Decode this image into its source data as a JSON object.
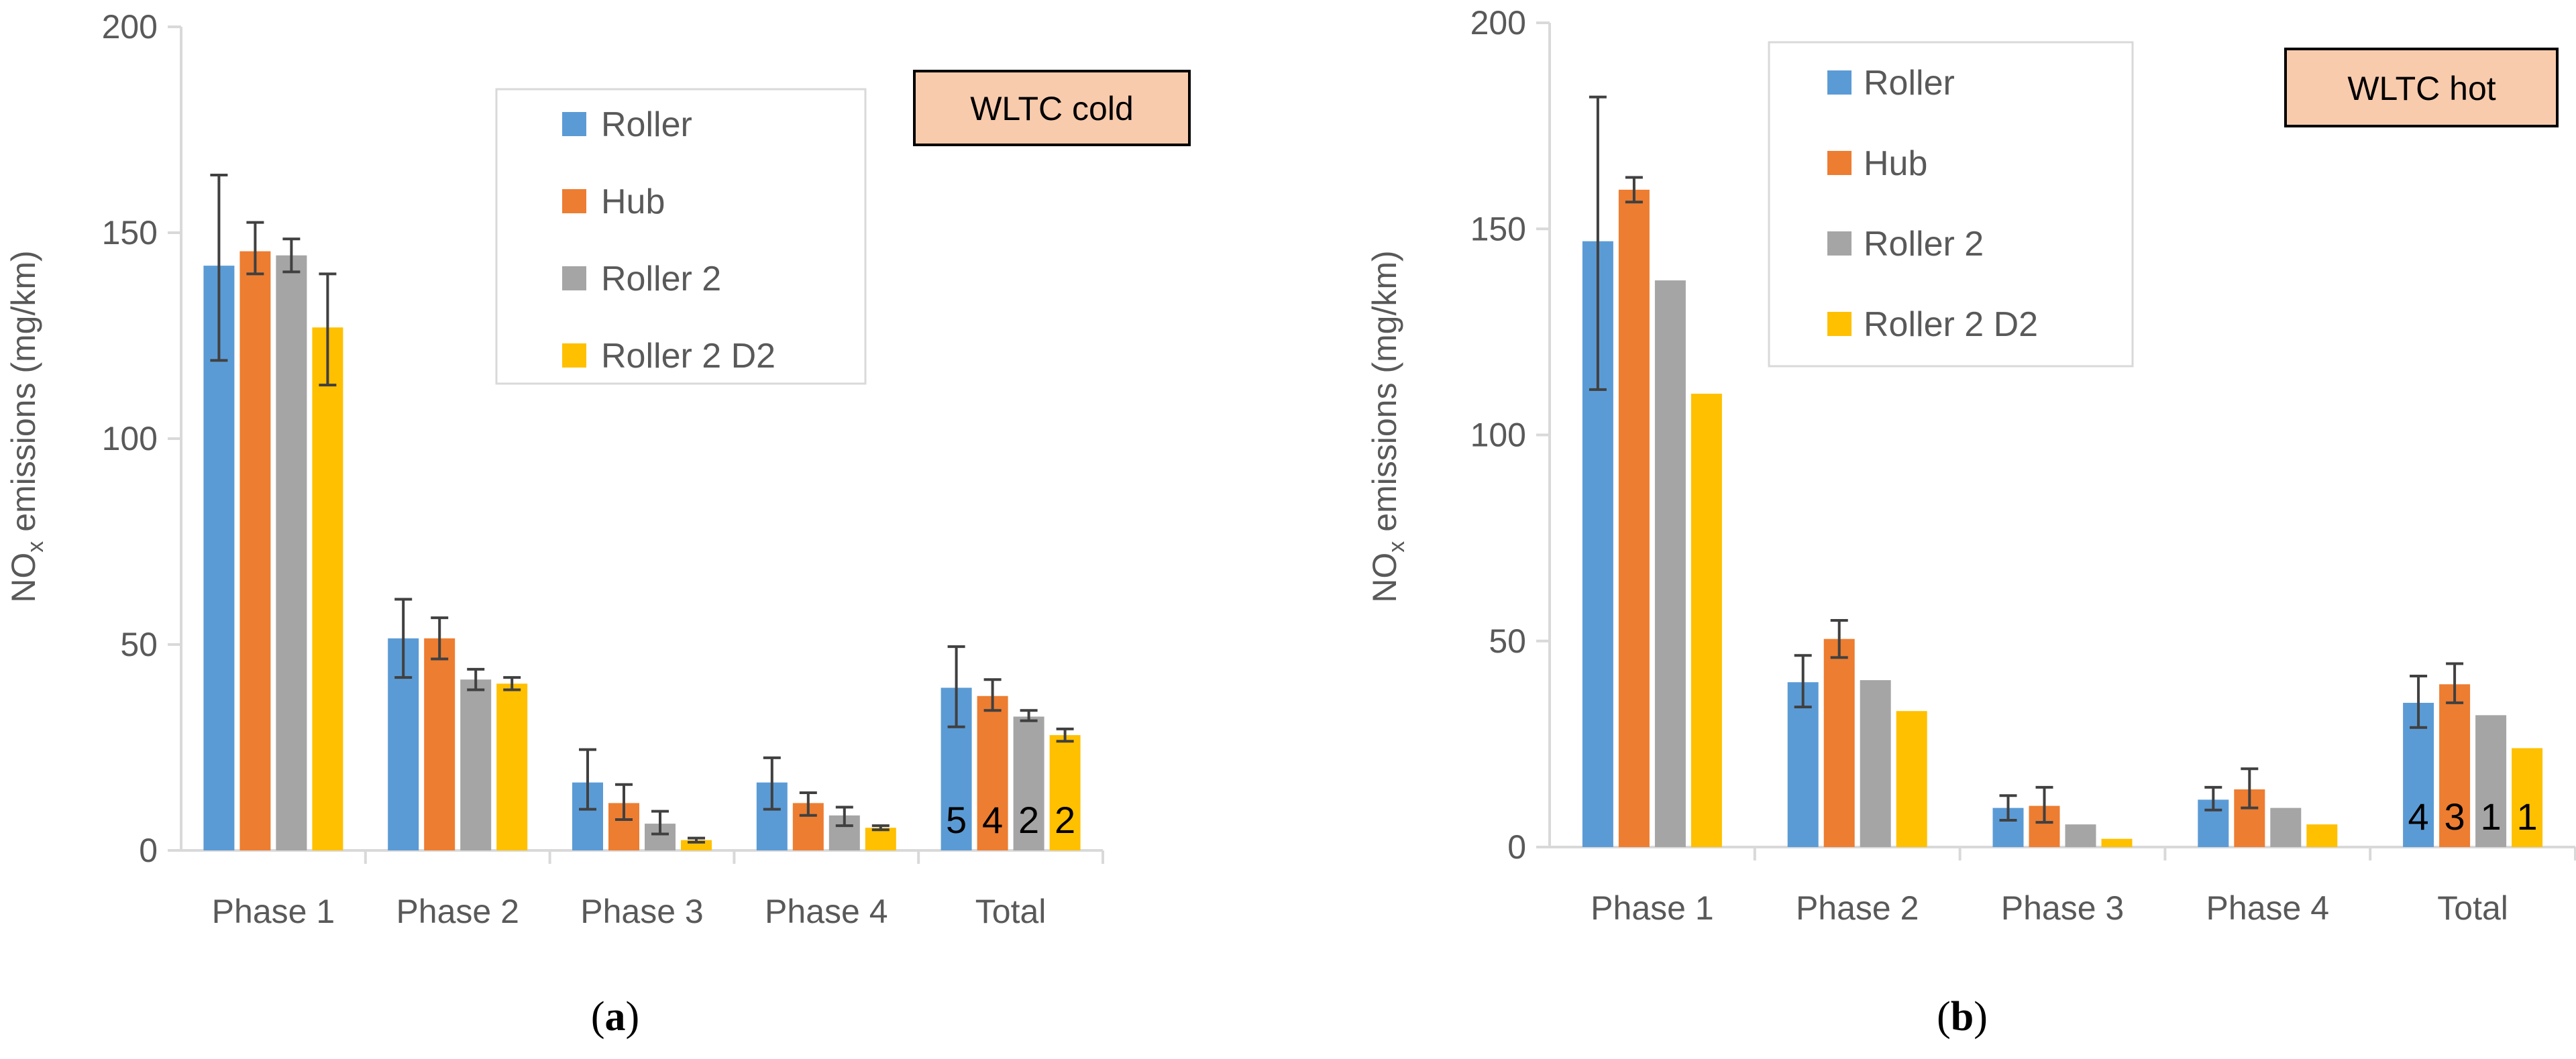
{
  "colors": {
    "Roller": "#5b9bd5",
    "Hub": "#ed7d31",
    "Roller 2": "#a5a5a5",
    "Roller 2 D2": "#ffc000",
    "title_box": "#f8cbad"
  },
  "chart_data": [
    {
      "type": "bar",
      "panel_label_open": "(",
      "panel_label_letter": "a",
      "panel_label_close": ")",
      "title": "WLTC cold",
      "ylabel_prefix": "NO",
      "ylabel_sub": "x",
      "ylabel_suffix": " emissions (mg/km)",
      "ylim": [
        0,
        200
      ],
      "yticks": [
        "0",
        "50",
        "100",
        "150",
        "200"
      ],
      "categories": [
        "Phase 1",
        "Phase 2",
        "Phase 3",
        "Phase 4",
        "Total"
      ],
      "series": [
        {
          "name": "Roller",
          "values": [
            142,
            51.5,
            16.5,
            16.5,
            39.5
          ],
          "err_low": [
            119,
            42,
            10,
            10,
            30
          ],
          "err_high": [
            164,
            61,
            24.5,
            22.5,
            49.5
          ],
          "count": "5"
        },
        {
          "name": "Hub",
          "values": [
            145.5,
            51.5,
            11.5,
            11.5,
            37.5
          ],
          "err_low": [
            140,
            46.5,
            7.5,
            8.5,
            34
          ],
          "err_high": [
            152.5,
            56.5,
            16,
            14,
            41.5
          ],
          "count": "4"
        },
        {
          "name": "Roller 2",
          "values": [
            144.5,
            41.5,
            6.5,
            8.5,
            32.5
          ],
          "err_low": [
            140.5,
            39,
            4,
            6,
            31.5
          ],
          "err_high": [
            148.5,
            44,
            9.5,
            10.5,
            34
          ],
          "count": "2"
        },
        {
          "name": "Roller 2 D2",
          "values": [
            127,
            40.5,
            2.5,
            5.5,
            28
          ],
          "err_low": [
            113,
            39,
            2,
            5,
            26.5
          ],
          "err_high": [
            140,
            42,
            3,
            6,
            29.5
          ],
          "count": "2"
        }
      ]
    },
    {
      "type": "bar",
      "panel_label_open": "(",
      "panel_label_letter": "b",
      "panel_label_close": ")",
      "title": "WLTC hot",
      "ylabel_prefix": "NO",
      "ylabel_sub": "x",
      "ylabel_suffix": " emissions (mg/km)",
      "ylim": [
        0,
        200
      ],
      "yticks": [
        "0",
        "50",
        "100",
        "150",
        "200"
      ],
      "categories": [
        "Phase 1",
        "Phase 2",
        "Phase 3",
        "Phase 4",
        "Total"
      ],
      "series": [
        {
          "name": "Roller",
          "values": [
            147,
            40,
            9.5,
            11.5,
            35
          ],
          "err_low": [
            111,
            34,
            6.5,
            9,
            29
          ],
          "err_high": [
            182,
            46.5,
            12.5,
            14.5,
            41.5
          ],
          "count": "4"
        },
        {
          "name": "Hub",
          "values": [
            159.5,
            50.5,
            10,
            14,
            39.5
          ],
          "err_low": [
            156.5,
            46,
            6,
            9.5,
            35
          ],
          "err_high": [
            162.5,
            55,
            14.5,
            19,
            44.5
          ],
          "count": "3"
        },
        {
          "name": "Roller 2",
          "values": [
            137.5,
            40.5,
            5.5,
            9.5,
            32
          ],
          "err_low": null,
          "err_high": null,
          "count": "1"
        },
        {
          "name": "Roller 2 D2",
          "values": [
            110,
            33,
            2,
            5.5,
            24
          ],
          "err_low": null,
          "err_high": null,
          "count": "1"
        }
      ]
    }
  ]
}
